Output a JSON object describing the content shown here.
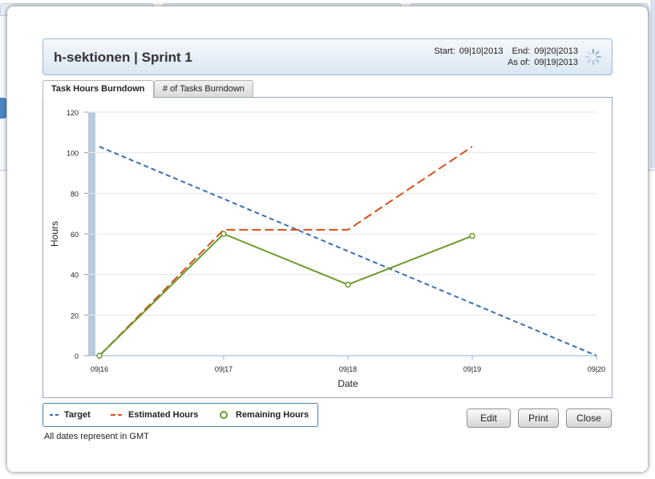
{
  "dialog": {
    "title": "h-sektionen | Sprint 1",
    "start_label": "Start:",
    "start_date": "09|10|2013",
    "end_label": "End:",
    "end_date": "09|20|2013",
    "asof_label": "As of:",
    "asof_date": "09|19|2013"
  },
  "tabs": [
    {
      "label": "Task Hours Burndown",
      "active": true
    },
    {
      "label": "# of Tasks Burndown",
      "active": false
    }
  ],
  "chart_data": {
    "type": "line",
    "xlabel": "Date",
    "ylabel": "Hours",
    "ylim": [
      0,
      120
    ],
    "yticks": [
      0,
      20,
      40,
      60,
      80,
      100,
      120
    ],
    "categories": [
      "09|16",
      "09|17",
      "09|18",
      "09|19",
      "09|20"
    ],
    "grid": true,
    "series": [
      {
        "name": "Target",
        "style": "dashed",
        "color": "#3a6fb0",
        "x": [
          0,
          4
        ],
        "values": [
          103,
          0
        ]
      },
      {
        "name": "Estimated Hours",
        "style": "longdash",
        "color": "#d4531c",
        "x": [
          0,
          1,
          2,
          3
        ],
        "values": [
          0,
          62,
          62,
          103
        ]
      },
      {
        "name": "Remaining Hours",
        "style": "solid-markers",
        "color": "#6b9a2a",
        "x": [
          0,
          1,
          2,
          3
        ],
        "values": [
          0,
          60,
          35,
          59
        ]
      }
    ],
    "today_band_color": "#b9c9dc"
  },
  "legend": [
    {
      "label": "Target",
      "color": "#3a6fb0"
    },
    {
      "label": "Estimated Hours",
      "color": "#d4531c"
    },
    {
      "label": "Remaining Hours",
      "color": "#6b9a2a"
    }
  ],
  "footer_note": "All dates represent in GMT",
  "buttons": {
    "edit": "Edit",
    "print": "Print",
    "close": "Close"
  }
}
